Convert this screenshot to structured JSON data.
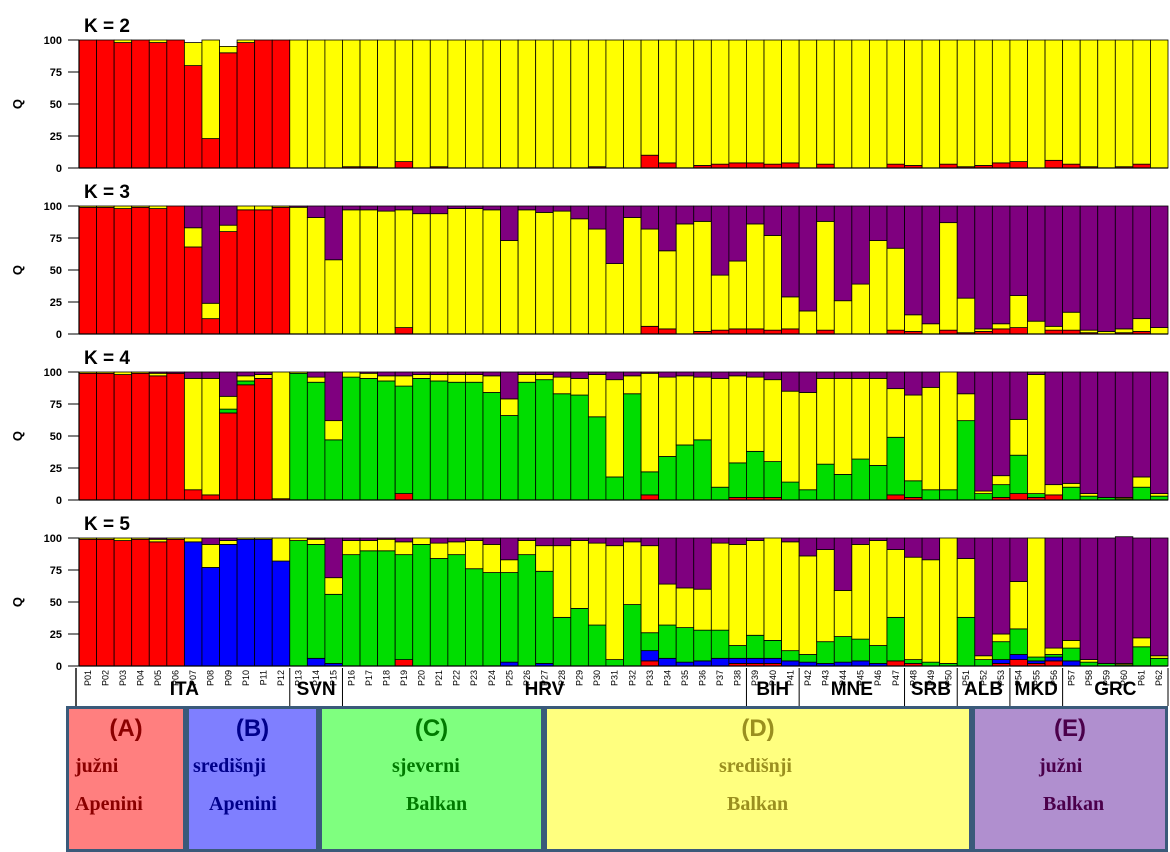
{
  "chart_data": {
    "type": "bar",
    "stacked": true,
    "ylabel": "Q",
    "yticks": [
      "0",
      "25",
      "50",
      "75",
      "100"
    ],
    "ylim": [
      0,
      100
    ],
    "colors": {
      "red": "#ff0000",
      "blue": "#0000ff",
      "green": "#00dd00",
      "yellow": "#ffff00",
      "purple": "#7f007f"
    },
    "categories": [
      "P01",
      "P02",
      "P03",
      "P04",
      "P05",
      "P06",
      "P07",
      "P08",
      "P09",
      "P10",
      "P11",
      "P12",
      "P13",
      "P14",
      "P15",
      "P16",
      "P17",
      "P18",
      "P19",
      "P20",
      "P21",
      "P22",
      "P23",
      "P24",
      "P25",
      "P26",
      "P27",
      "P28",
      "P29",
      "P30",
      "P31",
      "P32",
      "P33",
      "P34",
      "P35",
      "P36",
      "P37",
      "P38",
      "P39",
      "P40",
      "P41",
      "P42",
      "P43",
      "P44",
      "P45",
      "P46",
      "P47",
      "P48",
      "P49",
      "P50",
      "P51",
      "P52",
      "P53",
      "P54",
      "P55",
      "P56",
      "P57",
      "P58",
      "P59",
      "P60",
      "P61",
      "P62"
    ],
    "panels": [
      {
        "title": "K = 2",
        "series": [
          {
            "color": "red",
            "values": [
              100,
              100,
              98,
              100,
              98,
              100,
              80,
              23,
              90,
              98,
              100,
              100,
              0,
              0,
              0,
              1,
              1,
              0,
              5,
              0,
              1,
              0,
              0,
              0,
              0,
              0,
              0,
              0,
              0,
              1,
              0,
              0,
              10,
              4,
              0,
              2,
              3,
              4,
              4,
              3,
              4,
              0,
              3,
              0,
              0,
              0,
              3,
              2,
              0,
              3,
              1,
              2,
              4,
              5,
              0,
              6,
              3,
              1,
              0,
              1,
              3,
              0
            ]
          },
          {
            "color": "yellow",
            "values": [
              0,
              0,
              2,
              0,
              2,
              0,
              18,
              77,
              5,
              2,
              0,
              0,
              100,
              100,
              100,
              99,
              99,
              100,
              95,
              100,
              99,
              100,
              100,
              100,
              100,
              100,
              100,
              100,
              100,
              99,
              100,
              100,
              90,
              96,
              100,
              98,
              97,
              96,
              96,
              97,
              96,
              100,
              97,
              100,
              100,
              100,
              97,
              98,
              100,
              97,
              99,
              98,
              96,
              95,
              100,
              94,
              97,
              99,
              100,
              99,
              97,
              100
            ]
          }
        ]
      },
      {
        "title": "K = 3",
        "series": [
          {
            "color": "red",
            "values": [
              99,
              99,
              98,
              99,
              98,
              100,
              68,
              12,
              80,
              97,
              97,
              99,
              0,
              0,
              0,
              0,
              0,
              0,
              5,
              0,
              0,
              0,
              0,
              0,
              0,
              0,
              0,
              0,
              0,
              0,
              0,
              0,
              6,
              4,
              0,
              2,
              3,
              4,
              4,
              3,
              4,
              0,
              3,
              0,
              0,
              0,
              3,
              2,
              0,
              3,
              1,
              2,
              4,
              5,
              0,
              3,
              3,
              1,
              0,
              1,
              2,
              0
            ]
          },
          {
            "color": "yellow",
            "values": [
              1,
              1,
              2,
              1,
              2,
              0,
              15,
              12,
              5,
              3,
              3,
              1,
              99,
              91,
              58,
              97,
              97,
              96,
              92,
              94,
              94,
              98,
              98,
              97,
              73,
              97,
              95,
              96,
              90,
              82,
              55,
              91,
              76,
              61,
              86,
              86,
              43,
              53,
              82,
              74,
              25,
              18,
              85,
              26,
              39,
              73,
              64,
              13,
              8,
              84,
              27,
              2,
              4,
              25,
              10,
              3,
              14,
              2,
              2,
              3,
              10,
              5
            ]
          },
          {
            "color": "purple",
            "values": [
              0,
              0,
              0,
              0,
              0,
              0,
              17,
              76,
              15,
              0,
              0,
              0,
              1,
              9,
              42,
              3,
              3,
              4,
              3,
              6,
              6,
              2,
              2,
              3,
              27,
              3,
              5,
              4,
              10,
              18,
              45,
              9,
              18,
              35,
              14,
              12,
              54,
              43,
              14,
              23,
              71,
              82,
              12,
              74,
              61,
              27,
              33,
              85,
              92,
              13,
              72,
              96,
              92,
              70,
              90,
              94,
              83,
              97,
              98,
              96,
              88,
              95
            ]
          }
        ]
      },
      {
        "title": "K = 4",
        "series": [
          {
            "color": "red",
            "values": [
              99,
              99,
              98,
              99,
              97,
              99,
              8,
              4,
              68,
              90,
              95,
              1,
              0,
              0,
              0,
              0,
              0,
              0,
              5,
              0,
              0,
              0,
              0,
              0,
              0,
              0,
              0,
              0,
              0,
              0,
              0,
              0,
              4,
              0,
              0,
              0,
              0,
              2,
              2,
              2,
              0,
              0,
              0,
              0,
              0,
              0,
              4,
              2,
              0,
              0,
              0,
              0,
              2,
              5,
              2,
              4,
              0,
              0,
              0,
              0,
              0,
              0
            ]
          },
          {
            "color": "green",
            "values": [
              0,
              0,
              0,
              0,
              0,
              0,
              0,
              0,
              3,
              3,
              0,
              0,
              99,
              92,
              47,
              96,
              95,
              93,
              84,
              95,
              93,
              92,
              92,
              84,
              66,
              92,
              94,
              83,
              82,
              65,
              18,
              83,
              18,
              34,
              43,
              47,
              10,
              27,
              36,
              28,
              14,
              8,
              28,
              20,
              32,
              27,
              45,
              13,
              8,
              8,
              62,
              5,
              10,
              30,
              3,
              0,
              10,
              3,
              2,
              1,
              10,
              3
            ]
          },
          {
            "color": "yellow",
            "values": [
              1,
              1,
              2,
              1,
              2,
              0,
              87,
              91,
              10,
              4,
              3,
              99,
              1,
              4,
              15,
              4,
              4,
              4,
              8,
              3,
              5,
              6,
              6,
              13,
              13,
              6,
              4,
              13,
              13,
              33,
              76,
              14,
              77,
              62,
              54,
              49,
              85,
              68,
              58,
              64,
              71,
              76,
              67,
              75,
              63,
              68,
              38,
              67,
              80,
              92,
              21,
              2,
              7,
              28,
              93,
              8,
              3,
              2,
              0,
              1,
              8,
              2
            ]
          },
          {
            "color": "purple",
            "values": [
              0,
              0,
              0,
              0,
              1,
              1,
              5,
              5,
              19,
              3,
              2,
              0,
              0,
              4,
              38,
              0,
              1,
              3,
              3,
              2,
              2,
              2,
              2,
              3,
              21,
              2,
              2,
              4,
              5,
              2,
              6,
              3,
              1,
              4,
              3,
              4,
              5,
              3,
              4,
              6,
              15,
              16,
              5,
              5,
              5,
              5,
              13,
              18,
              12,
              0,
              17,
              93,
              81,
              37,
              2,
              88,
              87,
              95,
              98,
              98,
              82,
              95
            ]
          }
        ]
      },
      {
        "title": "K = 5",
        "series": [
          {
            "color": "red",
            "values": [
              99,
              99,
              98,
              99,
              97,
              99,
              0,
              0,
              0,
              0,
              0,
              0,
              0,
              0,
              0,
              0,
              0,
              0,
              5,
              0,
              0,
              0,
              0,
              0,
              0,
              0,
              0,
              0,
              0,
              0,
              0,
              0,
              4,
              0,
              0,
              0,
              0,
              2,
              2,
              2,
              0,
              0,
              0,
              0,
              0,
              0,
              4,
              2,
              0,
              0,
              0,
              0,
              2,
              5,
              2,
              4,
              0,
              0,
              0,
              0,
              0,
              0
            ]
          },
          {
            "color": "blue",
            "values": [
              0,
              0,
              0,
              0,
              0,
              0,
              97,
              77,
              95,
              99,
              99,
              82,
              0,
              6,
              2,
              0,
              0,
              0,
              0,
              0,
              0,
              0,
              0,
              0,
              3,
              0,
              2,
              0,
              0,
              0,
              0,
              0,
              8,
              6,
              3,
              4,
              6,
              4,
              4,
              4,
              4,
              3,
              2,
              3,
              4,
              2,
              0,
              0,
              0,
              0,
              0,
              0,
              3,
              4,
              2,
              3,
              4,
              0,
              0,
              0,
              0,
              0
            ]
          },
          {
            "color": "green",
            "values": [
              0,
              0,
              0,
              0,
              0,
              0,
              0,
              0,
              0,
              0,
              0,
              0,
              98,
              89,
              54,
              87,
              90,
              90,
              82,
              95,
              84,
              87,
              76,
              73,
              70,
              87,
              72,
              38,
              45,
              32,
              5,
              48,
              14,
              26,
              27,
              24,
              22,
              10,
              18,
              14,
              8,
              6,
              17,
              20,
              17,
              14,
              34,
              3,
              3,
              2,
              38,
              5,
              14,
              20,
              3,
              2,
              10,
              3,
              2,
              1,
              15,
              6
            ]
          },
          {
            "color": "yellow",
            "values": [
              1,
              1,
              2,
              1,
              2,
              1,
              3,
              18,
              3,
              1,
              1,
              18,
              2,
              4,
              13,
              11,
              8,
              9,
              10,
              5,
              12,
              10,
              22,
              22,
              10,
              11,
              20,
              56,
              53,
              64,
              89,
              49,
              68,
              32,
              31,
              32,
              68,
              79,
              74,
              80,
              85,
              77,
              72,
              36,
              74,
              82,
              53,
              80,
              80,
              98,
              46,
              3,
              6,
              37,
              93,
              5,
              6,
              2,
              0,
              1,
              7,
              2
            ]
          },
          {
            "color": "purple",
            "values": [
              0,
              0,
              0,
              0,
              1,
              0,
              0,
              5,
              2,
              0,
              0,
              0,
              0,
              1,
              31,
              2,
              2,
              1,
              3,
              0,
              4,
              3,
              2,
              5,
              17,
              2,
              6,
              6,
              2,
              4,
              6,
              3,
              6,
              36,
              39,
              40,
              4,
              5,
              2,
              0,
              3,
              14,
              9,
              41,
              5,
              2,
              9,
              15,
              17,
              0,
              16,
              92,
              75,
              34,
              0,
              86,
              80,
              95,
              98,
              99,
              78,
              92
            ]
          }
        ]
      }
    ],
    "countries": [
      {
        "label": "ITA",
        "start": 0,
        "end": 11
      },
      {
        "label": "SVN",
        "start": 12,
        "end": 14
      },
      {
        "label": "HRV",
        "start": 15,
        "end": 37
      },
      {
        "label": "BIH",
        "start": 38,
        "end": 40
      },
      {
        "label": "MNE",
        "start": 41,
        "end": 46
      },
      {
        "label": "SRB",
        "start": 47,
        "end": 49
      },
      {
        "label": "ALB",
        "start": 50,
        "end": 52
      },
      {
        "label": "MKD",
        "start": 53,
        "end": 55
      },
      {
        "label": "GRC",
        "start": 56,
        "end": 61
      }
    ]
  },
  "legend": [
    {
      "code": "(A)",
      "line1": "južni",
      "line2": "Apenini",
      "fill": "#ff7f7f",
      "text": "#8b0000"
    },
    {
      "code": "(B)",
      "line1": "središnji",
      "line2": "Apenini",
      "fill": "#7f7fff",
      "text": "#00008b"
    },
    {
      "code": "(C)",
      "line1": "sjeverni",
      "line2": "Balkan",
      "fill": "#7fff7f",
      "text": "#007a00"
    },
    {
      "code": "(D)",
      "line1": "središnji",
      "line2": "Balkan",
      "fill": "#ffff7f",
      "text": "#9a8f1f"
    },
    {
      "code": "(E)",
      "line1": "južni",
      "line2": "Balkan",
      "fill": "#b08fcf",
      "text": "#4b004b"
    }
  ]
}
